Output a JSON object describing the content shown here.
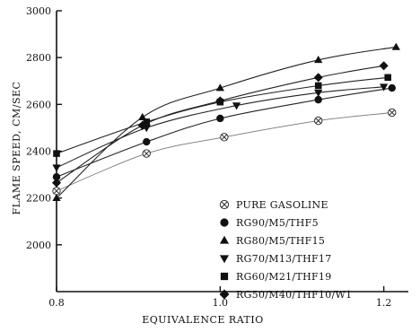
{
  "chart_data": {
    "type": "line",
    "title": "",
    "xlabel": "EQUIVALENCE RATIO",
    "ylabel": "FLAME SPEED, CM/SEC",
    "xlim": [
      0.8,
      1.23
    ],
    "ylim": [
      1800,
      3000
    ],
    "xticks": [
      {
        "value": 0.8,
        "label": "0.8"
      },
      {
        "value": 1.0,
        "label": "1.0"
      },
      {
        "value": 1.2,
        "label": "1.2"
      }
    ],
    "yticks": [
      {
        "value": 2000,
        "label": "2000"
      },
      {
        "value": 2200,
        "label": "2200"
      },
      {
        "value": 2400,
        "label": "2400"
      },
      {
        "value": 2600,
        "label": "2600"
      },
      {
        "value": 2800,
        "label": "2800"
      },
      {
        "value": 3000,
        "label": "3000"
      }
    ],
    "grid": false,
    "legend_position": "bottom-right",
    "series": [
      {
        "name": "PURE GASOLINE",
        "marker": "circle-x",
        "x": [
          0.8,
          0.91,
          1.005,
          1.12,
          1.21
        ],
        "y": [
          2230,
          2390,
          2460,
          2530,
          2565
        ]
      },
      {
        "name": "RG90/M5/THF5",
        "marker": "circle",
        "x": [
          0.8,
          0.91,
          1.0,
          1.12,
          1.21
        ],
        "y": [
          2290,
          2440,
          2540,
          2620,
          2670
        ]
      },
      {
        "name": "RG80/M5/THF15",
        "marker": "triangle-up",
        "x": [
          0.8,
          0.905,
          1.0,
          1.12,
          1.215
        ],
        "y": [
          2200,
          2545,
          2670,
          2790,
          2845
        ]
      },
      {
        "name": "RG70/M13/THF17",
        "marker": "triangle-down",
        "x": [
          0.8,
          0.91,
          1.02,
          1.12,
          1.2
        ],
        "y": [
          2330,
          2500,
          2595,
          2650,
          2675
        ]
      },
      {
        "name": "RG60/M21/THF19",
        "marker": "square",
        "x": [
          0.8,
          0.91,
          1.0,
          1.12,
          1.205
        ],
        "y": [
          2390,
          2525,
          2610,
          2680,
          2715
        ]
      },
      {
        "name": "RG50/M40/THF10/W1",
        "marker": "diamond",
        "x": [
          0.8,
          0.905,
          1.0,
          1.12,
          1.2
        ],
        "y": [
          2265,
          2510,
          2615,
          2715,
          2765
        ]
      }
    ]
  }
}
